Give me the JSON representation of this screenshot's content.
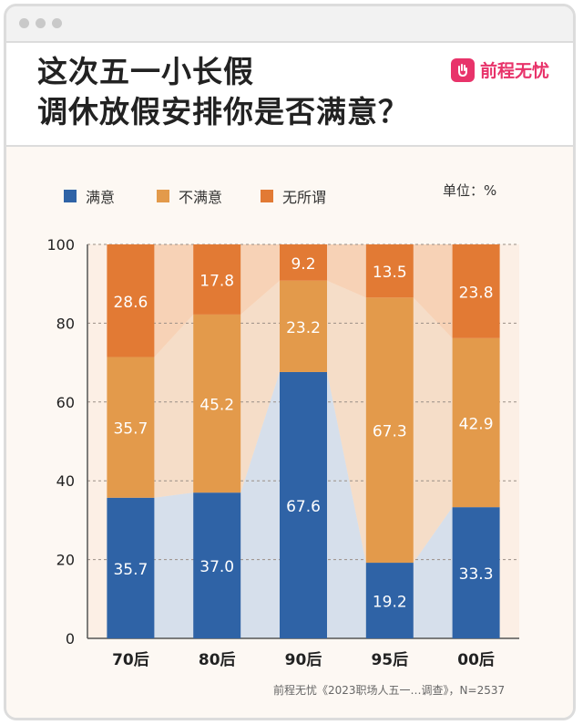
{
  "window": {
    "buttons": [
      "close",
      "minimize",
      "maximize"
    ]
  },
  "title_lines": [
    "这次五一小长假",
    "调休放假安排你是否满意？"
  ],
  "brand": {
    "name": "前程无忧",
    "color": "#e8336a"
  },
  "unit_label": "单位：%",
  "source_note": "前程无忧《2023职场人五一…调查》，N=2537",
  "chart_data": {
    "type": "bar",
    "stacked": true,
    "categories": [
      "70后",
      "80后",
      "90后",
      "95后",
      "00后"
    ],
    "series": [
      {
        "name": "满意",
        "color": "#2f63a6",
        "values": [
          35.7,
          37.0,
          67.6,
          19.2,
          33.3
        ]
      },
      {
        "name": "不满意",
        "color": "#e39a4b",
        "values": [
          35.7,
          45.2,
          23.2,
          67.3,
          42.9
        ]
      },
      {
        "name": "无所谓",
        "color": "#e27a34",
        "values": [
          28.6,
          17.8,
          9.2,
          13.5,
          23.8
        ]
      }
    ],
    "ylim": [
      0,
      100
    ],
    "yticks": [
      0,
      20,
      40,
      60,
      80,
      100
    ],
    "grid": true,
    "legend_position": "top"
  }
}
